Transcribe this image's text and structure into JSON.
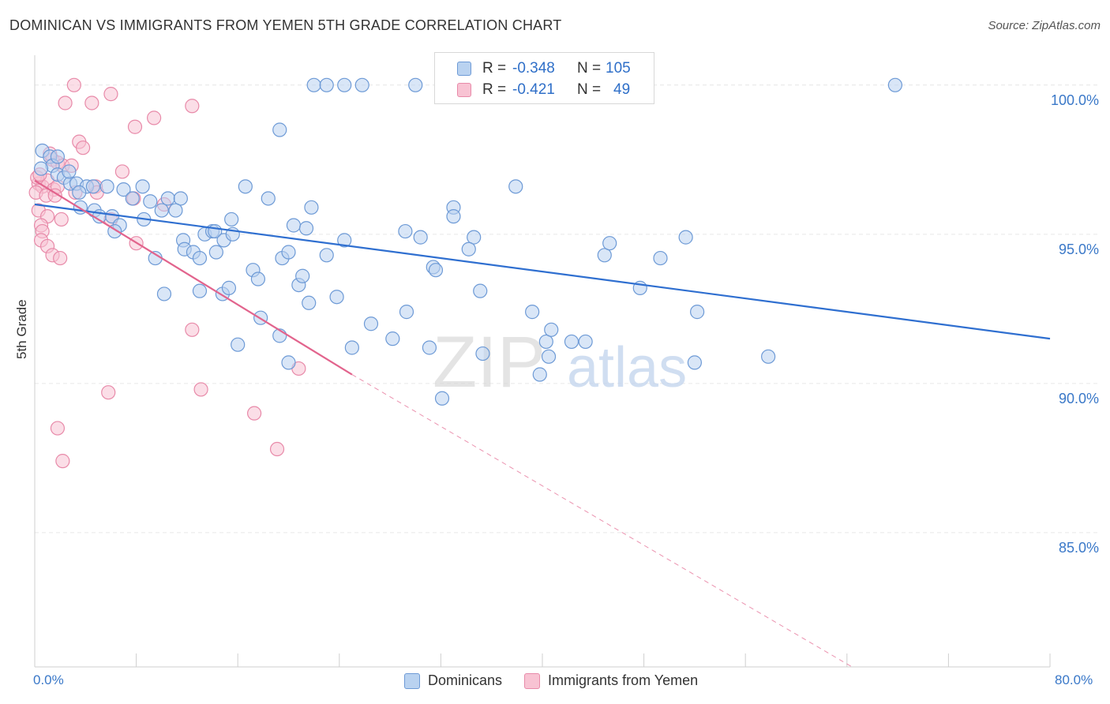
{
  "title": "DOMINICAN VS IMMIGRANTS FROM YEMEN 5TH GRADE CORRELATION CHART",
  "source": "Source: ZipAtlas.com",
  "watermark": {
    "zip": "ZIP",
    "atlas": "atlas"
  },
  "colors": {
    "blue_fill": "#b9d2f0",
    "blue_stroke": "#6d9ad6",
    "blue_line": "#2f6fd0",
    "pink_fill": "#f8c3d3",
    "pink_stroke": "#e88aa9",
    "pink_line": "#e2648d",
    "grid": "#e6e6e6",
    "tick_label": "#3a78c8"
  },
  "legend_stats": {
    "row1": {
      "r_label": "R =",
      "r_value": "-0.348",
      "n_label": "N =",
      "n_value": "105"
    },
    "row2": {
      "r_label": "R =",
      "r_value": "-0.421",
      "n_label": "N =",
      "n_value": "49"
    }
  },
  "chart_data": {
    "type": "scatter",
    "title": "DOMINICAN VS IMMIGRANTS FROM YEMEN 5TH GRADE CORRELATION CHART",
    "xlabel": "",
    "ylabel": "5th Grade",
    "xlim": [
      0,
      80
    ],
    "ylim": [
      80.5,
      101.0
    ],
    "x_tick_labels": [
      "0.0%",
      "80.0%"
    ],
    "y_ticks": [
      85,
      90,
      95,
      100
    ],
    "y_tick_labels": [
      "85.0%",
      "90.0%",
      "95.0%",
      "100.0%"
    ],
    "grid": true,
    "legend_position": "bottom",
    "series": [
      {
        "name": "Dominicans",
        "color": "#6d9ad6",
        "trend": {
          "x0": 0,
          "y0": 96.0,
          "x1": 80,
          "y1": 91.5,
          "style": "solid"
        },
        "points": [
          [
            0.6,
            97.8
          ],
          [
            1.2,
            97.6
          ],
          [
            1.4,
            97.3
          ],
          [
            1.8,
            97.0
          ],
          [
            2.3,
            96.9
          ],
          [
            2.8,
            96.7
          ],
          [
            3.3,
            96.7
          ],
          [
            4.1,
            96.6
          ],
          [
            4.6,
            96.6
          ],
          [
            5.7,
            96.6
          ],
          [
            7.0,
            96.5
          ],
          [
            7.7,
            96.2
          ],
          [
            8.5,
            96.6
          ],
          [
            9.1,
            96.1
          ],
          [
            10.5,
            96.2
          ],
          [
            11.5,
            96.2
          ],
          [
            0.5,
            97.2
          ],
          [
            1.8,
            97.6
          ],
          [
            2.7,
            97.1
          ],
          [
            3.5,
            96.4
          ],
          [
            3.6,
            95.9
          ],
          [
            4.7,
            95.8
          ],
          [
            5.1,
            95.6
          ],
          [
            6.1,
            95.6
          ],
          [
            6.7,
            95.3
          ],
          [
            6.3,
            95.1
          ],
          [
            8.6,
            95.5
          ],
          [
            10.0,
            95.8
          ],
          [
            11.1,
            95.8
          ],
          [
            11.7,
            94.8
          ],
          [
            11.8,
            94.5
          ],
          [
            12.5,
            94.4
          ],
          [
            13.0,
            94.2
          ],
          [
            13.4,
            95.0
          ],
          [
            14.0,
            95.1
          ],
          [
            14.2,
            95.1
          ],
          [
            14.3,
            94.4
          ],
          [
            14.9,
            94.8
          ],
          [
            15.5,
            95.5
          ],
          [
            15.6,
            95.0
          ],
          [
            16.6,
            96.6
          ],
          [
            18.4,
            96.2
          ],
          [
            19.3,
            98.5
          ],
          [
            20.4,
            95.3
          ],
          [
            21.4,
            95.2
          ],
          [
            21.8,
            95.9
          ],
          [
            19.5,
            94.2
          ],
          [
            17.2,
            93.8
          ],
          [
            17.6,
            93.5
          ],
          [
            20.0,
            94.4
          ],
          [
            20.8,
            93.3
          ],
          [
            21.1,
            93.6
          ],
          [
            21.6,
            92.7
          ],
          [
            23.0,
            94.3
          ],
          [
            24.4,
            94.8
          ],
          [
            23.8,
            92.9
          ],
          [
            13.0,
            93.1
          ],
          [
            14.8,
            93.0
          ],
          [
            15.3,
            93.2
          ],
          [
            10.2,
            93.0
          ],
          [
            9.5,
            94.2
          ],
          [
            17.8,
            92.2
          ],
          [
            16.0,
            91.3
          ],
          [
            19.3,
            91.6
          ],
          [
            20.0,
            90.7
          ],
          [
            22.0,
            100.0
          ],
          [
            23.0,
            100.0
          ],
          [
            24.4,
            100.0
          ],
          [
            25.8,
            100.0
          ],
          [
            30.0,
            100.0
          ],
          [
            33.0,
            100.0
          ],
          [
            43.0,
            100.0
          ],
          [
            67.8,
            100.0
          ],
          [
            29.2,
            95.1
          ],
          [
            30.4,
            94.9
          ],
          [
            33.0,
            95.9
          ],
          [
            33.0,
            95.6
          ],
          [
            34.6,
            94.9
          ],
          [
            31.4,
            93.9
          ],
          [
            31.6,
            93.8
          ],
          [
            25.0,
            91.2
          ],
          [
            26.5,
            92.0
          ],
          [
            28.2,
            91.5
          ],
          [
            29.3,
            92.4
          ],
          [
            31.1,
            91.2
          ],
          [
            32.1,
            89.5
          ],
          [
            35.3,
            91.0
          ],
          [
            37.9,
            96.6
          ],
          [
            35.1,
            93.1
          ],
          [
            39.2,
            92.4
          ],
          [
            40.3,
            91.4
          ],
          [
            40.7,
            91.8
          ],
          [
            40.5,
            90.9
          ],
          [
            42.3,
            91.4
          ],
          [
            43.4,
            91.4
          ],
          [
            39.8,
            90.3
          ],
          [
            44.9,
            94.3
          ],
          [
            45.3,
            94.7
          ],
          [
            47.7,
            93.2
          ],
          [
            49.3,
            94.2
          ],
          [
            51.3,
            94.9
          ],
          [
            52.2,
            92.4
          ],
          [
            52.0,
            90.7
          ],
          [
            57.8,
            90.9
          ],
          [
            34.2,
            94.5
          ]
        ]
      },
      {
        "name": "Immigrants from Yemen",
        "color": "#e88aa9",
        "trend": {
          "x0": 0,
          "y0": 96.8,
          "x1": 25,
          "y1": 90.3,
          "style": "solid",
          "ext_x1": 64.4,
          "ext_y1": 80.5,
          "ext_style": "dashed"
        },
        "points": [
          [
            3.1,
            100.0
          ],
          [
            2.4,
            99.4
          ],
          [
            4.5,
            99.4
          ],
          [
            6.0,
            99.7
          ],
          [
            12.4,
            99.3
          ],
          [
            9.4,
            98.9
          ],
          [
            7.9,
            98.6
          ],
          [
            3.5,
            98.1
          ],
          [
            3.8,
            97.9
          ],
          [
            1.4,
            97.5
          ],
          [
            1.8,
            97.4
          ],
          [
            2.2,
            97.3
          ],
          [
            2.9,
            97.3
          ],
          [
            6.9,
            97.1
          ],
          [
            0.3,
            96.7
          ],
          [
            0.6,
            96.6
          ],
          [
            1.0,
            96.8
          ],
          [
            1.5,
            96.5
          ],
          [
            1.8,
            96.6
          ],
          [
            3.2,
            96.4
          ],
          [
            4.8,
            96.6
          ],
          [
            7.8,
            96.2
          ],
          [
            0.1,
            96.4
          ],
          [
            0.9,
            96.3
          ],
          [
            1.6,
            96.3
          ],
          [
            4.9,
            96.4
          ],
          [
            10.2,
            96.0
          ],
          [
            0.3,
            95.8
          ],
          [
            1.0,
            95.6
          ],
          [
            2.1,
            95.5
          ],
          [
            6.0,
            95.5
          ],
          [
            0.5,
            95.3
          ],
          [
            0.6,
            95.1
          ],
          [
            0.5,
            94.8
          ],
          [
            1.0,
            94.6
          ],
          [
            1.4,
            94.3
          ],
          [
            2.0,
            94.2
          ],
          [
            8.0,
            94.7
          ],
          [
            12.4,
            91.8
          ],
          [
            13.1,
            89.8
          ],
          [
            5.8,
            89.7
          ],
          [
            17.3,
            89.0
          ],
          [
            19.1,
            87.8
          ],
          [
            20.8,
            90.5
          ],
          [
            1.8,
            88.5
          ],
          [
            2.2,
            87.4
          ],
          [
            0.2,
            96.9
          ],
          [
            0.4,
            97.0
          ],
          [
            1.2,
            97.7
          ]
        ]
      }
    ]
  }
}
